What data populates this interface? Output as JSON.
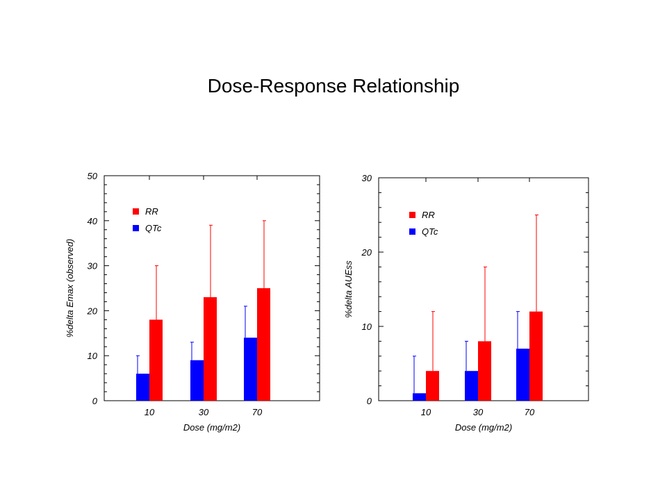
{
  "title": "Dose-Response Relationship",
  "colors": {
    "rr": "#ff0000",
    "qtc": "#0000ff",
    "axis": "#000000"
  },
  "chart_data": [
    {
      "type": "bar",
      "title": "",
      "xlabel": "Dose (mg/m2)",
      "ylabel": "%delta Emax (observed)",
      "ylim": [
        0,
        50
      ],
      "yticks": [
        "0",
        "10",
        "20",
        "30",
        "40",
        "50"
      ],
      "categories": [
        "10",
        "30",
        "70"
      ],
      "legend": "top-left",
      "error_bars": "upper",
      "series": [
        {
          "name": "RR",
          "color": "#ff0000",
          "values": [
            18,
            23,
            25
          ],
          "error_upper": [
            30,
            39,
            40
          ]
        },
        {
          "name": "QTc",
          "color": "#0000ff",
          "values": [
            6,
            9,
            14
          ],
          "error_upper": [
            10,
            13,
            21
          ]
        }
      ]
    },
    {
      "type": "bar",
      "title": "",
      "xlabel": "Dose (mg/m2)",
      "ylabel": "%delta AUEss",
      "ylim": [
        0,
        30
      ],
      "yticks": [
        "0",
        "10",
        "20",
        "30"
      ],
      "categories": [
        "10",
        "30",
        "70"
      ],
      "legend": "top-left",
      "error_bars": "upper",
      "series": [
        {
          "name": "RR",
          "color": "#ff0000",
          "values": [
            4,
            8,
            12
          ],
          "error_upper": [
            12,
            18,
            25
          ]
        },
        {
          "name": "QTc",
          "color": "#0000ff",
          "values": [
            1,
            4,
            7
          ],
          "error_upper": [
            6,
            8,
            12
          ]
        }
      ]
    }
  ]
}
